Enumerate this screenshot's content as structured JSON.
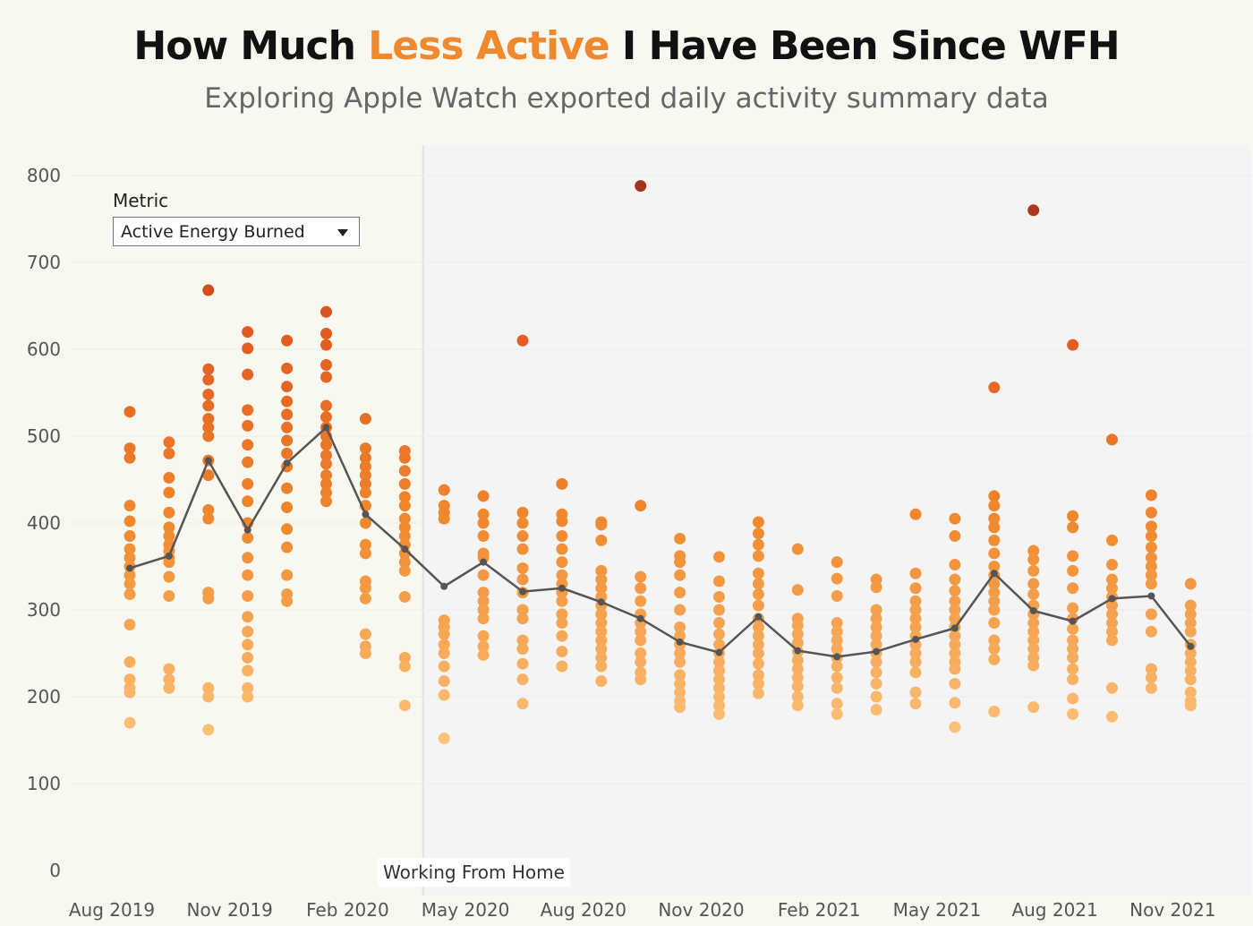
{
  "header": {
    "title_pre": "How Much ",
    "title_accent": "Less Active",
    "title_post": " I Have Been Since WFH",
    "subtitle": "Exploring Apple Watch exported daily activity summary data"
  },
  "controls": {
    "metric_label": "Metric",
    "metric_value": "Active Energy Burned"
  },
  "annotation": {
    "wfh_label": "Working From Home"
  },
  "colors": {
    "background": "#f8f8f0",
    "wfh_shade": "#f4f4f4",
    "title_accent": "#f0892e",
    "line": "#555555",
    "point_low": "#fcc279",
    "point_mid": "#f0892e",
    "point_high": "#a3331c"
  },
  "chart_data": {
    "type": "scatter",
    "title": "How Much Less Active I Have Been Since WFH",
    "ylim": [
      0,
      800
    ],
    "yticks": [
      0,
      100,
      200,
      300,
      400,
      500,
      600,
      700,
      800
    ],
    "xtick_labels": [
      "Aug 2019",
      "Nov 2019",
      "Feb 2020",
      "May 2020",
      "Aug 2020",
      "Nov 2020",
      "Feb 2021",
      "May 2021",
      "Aug 2021",
      "Nov 2021"
    ],
    "xtick_months": [
      "2019-08",
      "2019-11",
      "2020-02",
      "2020-05",
      "2020-08",
      "2020-11",
      "2021-02",
      "2021-05",
      "2021-08",
      "2021-11"
    ],
    "wfh_start": "2020-03-15",
    "grid": true,
    "months": [
      {
        "month": "2019-08",
        "mean": 348,
        "values": [
          528,
          486,
          475,
          420,
          402,
          385,
          370,
          360,
          350,
          340,
          330,
          318,
          283,
          240,
          220,
          210,
          205,
          170
        ]
      },
      {
        "month": "2019-09",
        "mean": 362,
        "values": [
          493,
          480,
          452,
          435,
          412,
          395,
          385,
          375,
          368,
          360,
          355,
          338,
          316,
          232,
          220,
          210
        ]
      },
      {
        "month": "2019-10",
        "mean": 472,
        "values": [
          668,
          577,
          565,
          548,
          535,
          520,
          510,
          500,
          472,
          455,
          415,
          405,
          320,
          313,
          210,
          200,
          162
        ]
      },
      {
        "month": "2019-11",
        "mean": 392,
        "values": [
          620,
          601,
          571,
          530,
          512,
          490,
          470,
          445,
          425,
          400,
          383,
          360,
          340,
          316,
          292,
          275,
          260,
          245,
          230,
          210,
          200
        ]
      },
      {
        "month": "2019-12",
        "mean": 469,
        "values": [
          610,
          578,
          557,
          540,
          525,
          510,
          495,
          480,
          465,
          440,
          418,
          393,
          372,
          340,
          318,
          310
        ]
      },
      {
        "month": "2020-01",
        "mean": 510,
        "values": [
          643,
          618,
          605,
          582,
          568,
          535,
          522,
          510,
          500,
          490,
          478,
          468,
          455,
          445,
          435,
          425
        ]
      },
      {
        "month": "2020-02",
        "mean": 410,
        "values": [
          520,
          486,
          475,
          465,
          455,
          445,
          435,
          420,
          400,
          375,
          365,
          333,
          325,
          313,
          272,
          258,
          250
        ]
      },
      {
        "month": "2020-03",
        "mean": 370,
        "values": [
          483,
          475,
          460,
          445,
          430,
          420,
          405,
          395,
          385,
          375,
          365,
          355,
          345,
          315,
          245,
          235,
          190
        ]
      },
      {
        "month": "2020-04",
        "mean": 327,
        "values": [
          438,
          420,
          412,
          405,
          288,
          280,
          272,
          260,
          250,
          235,
          218,
          202,
          152
        ]
      },
      {
        "month": "2020-05",
        "mean": 355,
        "values": [
          431,
          410,
          400,
          385,
          365,
          360,
          340,
          320,
          310,
          300,
          290,
          270,
          258,
          248
        ]
      },
      {
        "month": "2020-06",
        "mean": 321,
        "values": [
          610,
          412,
          400,
          385,
          370,
          348,
          335,
          320,
          300,
          290,
          265,
          255,
          238,
          220,
          192
        ]
      },
      {
        "month": "2020-07",
        "mean": 325,
        "values": [
          445,
          410,
          402,
          385,
          370,
          355,
          340,
          330,
          320,
          310,
          295,
          285,
          270,
          252,
          235
        ]
      },
      {
        "month": "2020-08",
        "mean": 309,
        "values": [
          401,
          398,
          380,
          345,
          335,
          325,
          315,
          305,
          295,
          285,
          275,
          265,
          255,
          245,
          235,
          218
        ]
      },
      {
        "month": "2020-09",
        "mean": 290,
        "values": [
          788,
          420,
          338,
          325,
          310,
          295,
          285,
          275,
          265,
          250,
          240,
          228,
          220
        ]
      },
      {
        "month": "2020-10",
        "mean": 263,
        "values": [
          382,
          362,
          355,
          340,
          320,
          300,
          280,
          270,
          260,
          250,
          240,
          225,
          215,
          205,
          195,
          188
        ]
      },
      {
        "month": "2020-11",
        "mean": 251,
        "values": [
          361,
          333,
          315,
          300,
          285,
          272,
          260,
          250,
          240,
          230,
          220,
          210,
          200,
          190,
          180
        ]
      },
      {
        "month": "2020-12",
        "mean": 292,
        "values": [
          401,
          388,
          375,
          362,
          342,
          330,
          318,
          305,
          290,
          280,
          270,
          260,
          250,
          238,
          225,
          215,
          204
        ]
      },
      {
        "month": "2021-01",
        "mean": 253,
        "values": [
          370,
          323,
          290,
          282,
          272,
          262,
          252,
          242,
          232,
          222,
          212,
          200,
          190
        ]
      },
      {
        "month": "2021-02",
        "mean": 246,
        "values": [
          355,
          336,
          316,
          285,
          275,
          265,
          255,
          245,
          235,
          222,
          210,
          192,
          180
        ]
      },
      {
        "month": "2021-03",
        "mean": 252,
        "values": [
          335,
          326,
          300,
          290,
          280,
          270,
          260,
          250,
          240,
          228,
          215,
          200,
          185
        ]
      },
      {
        "month": "2021-04",
        "mean": 266,
        "values": [
          410,
          342,
          325,
          310,
          300,
          290,
          280,
          270,
          260,
          250,
          240,
          228,
          205,
          192
        ]
      },
      {
        "month": "2021-05",
        "mean": 279,
        "values": [
          405,
          385,
          352,
          335,
          322,
          310,
          300,
          290,
          280,
          270,
          260,
          250,
          240,
          232,
          215,
          193,
          165
        ]
      },
      {
        "month": "2021-06",
        "mean": 342,
        "values": [
          556,
          431,
          420,
          405,
          395,
          380,
          365,
          350,
          340,
          330,
          320,
          310,
          300,
          285,
          265,
          255,
          243,
          183
        ]
      },
      {
        "month": "2021-07",
        "mean": 299,
        "values": [
          760,
          368,
          358,
          345,
          330,
          318,
          305,
          295,
          285,
          275,
          265,
          255,
          245,
          236,
          188
        ]
      },
      {
        "month": "2021-08",
        "mean": 287,
        "values": [
          605,
          408,
          395,
          362,
          345,
          325,
          302,
          290,
          278,
          265,
          255,
          245,
          232,
          220,
          198,
          180
        ]
      },
      {
        "month": "2021-09",
        "mean": 313,
        "values": [
          496,
          380,
          352,
          335,
          325,
          315,
          305,
          295,
          285,
          275,
          265,
          210,
          177
        ]
      },
      {
        "month": "2021-10",
        "mean": 316,
        "values": [
          432,
          412,
          396,
          385,
          372,
          360,
          350,
          340,
          330,
          295,
          275,
          232,
          222,
          210
        ]
      },
      {
        "month": "2021-11",
        "mean": 258,
        "values": [
          330,
          305,
          295,
          285,
          275,
          260,
          250,
          240,
          230,
          220,
          205,
          195,
          190
        ]
      }
    ]
  }
}
